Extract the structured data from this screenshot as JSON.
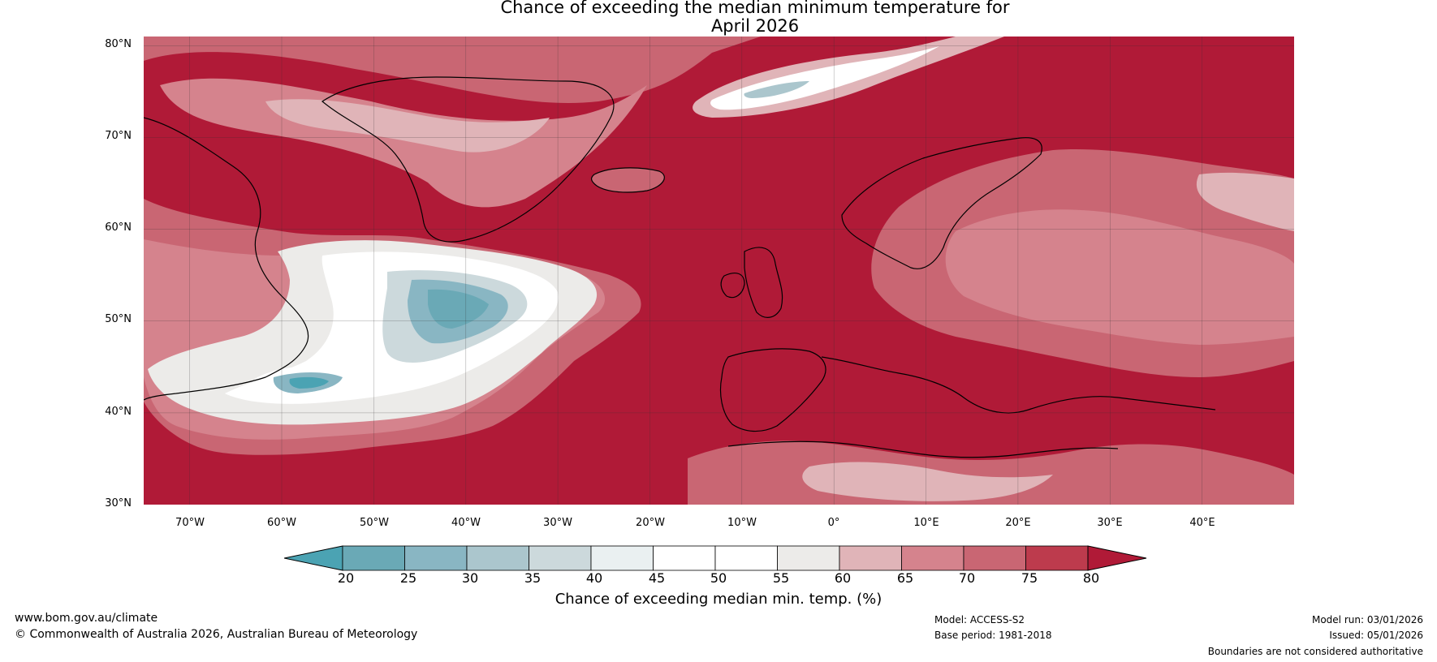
{
  "title": {
    "line1": "Chance of exceeding the median minimum temperature for",
    "line2": "April 2026"
  },
  "map": {
    "region": "North Atlantic and Europe",
    "lat_labels": [
      "80°N",
      "70°N",
      "60°N",
      "50°N",
      "40°N",
      "30°N"
    ],
    "lat_values": [
      80,
      70,
      60,
      50,
      40,
      30
    ],
    "lon_labels": [
      "70°W",
      "60°W",
      "50°W",
      "40°W",
      "30°W",
      "20°W",
      "10°W",
      "0°",
      "10°E",
      "20°E",
      "30°E",
      "40°E"
    ],
    "lon_values": [
      -70,
      -60,
      -50,
      -40,
      -30,
      -20,
      -10,
      0,
      10,
      20,
      30,
      40
    ],
    "lon_range": [
      -75,
      50
    ],
    "lat_range": [
      30,
      81
    ]
  },
  "colorbar": {
    "ticks": [
      "20",
      "25",
      "30",
      "35",
      "40",
      "45",
      "50",
      "55",
      "60",
      "65",
      "70",
      "75",
      "80"
    ],
    "colors": [
      "#4ba3b3",
      "#6aa9b6",
      "#89b6c3",
      "#abc6cd",
      "#ccd9dc",
      "#eaf0f1",
      "#ffffff",
      "#ffffff",
      "#ecebe9",
      "#e0b4b8",
      "#d5838d",
      "#c96673",
      "#bd3b4d",
      "#b01a37"
    ],
    "title": "Chance of exceeding median min. temp. (%)"
  },
  "footer": {
    "website": "www.bom.gov.au/climate",
    "copyright": "© Commonwealth of Australia 2026, Australian Bureau of Meteorology",
    "model": "Model: ACCESS-S2",
    "base_period": "Base period: 1981-2018",
    "model_run": "Model run: 03/01/2026",
    "issued": "Issued: 05/01/2026",
    "disclaimer": "Boundaries are not considered authoritative"
  }
}
